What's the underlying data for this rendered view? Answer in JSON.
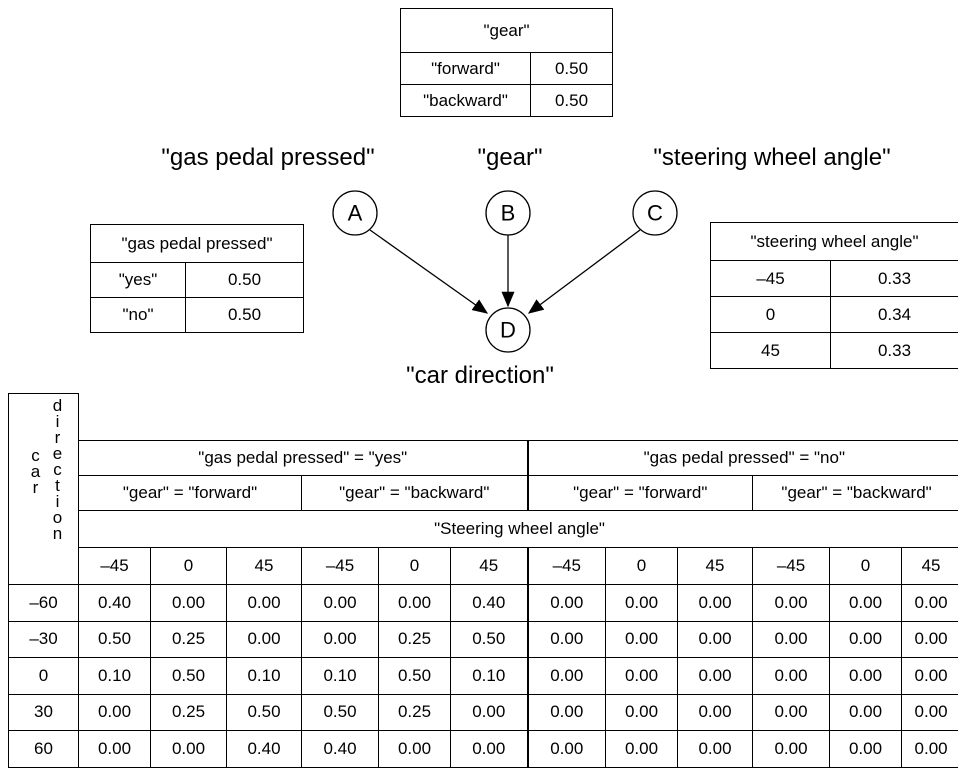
{
  "gear_table": {
    "title": "\"gear\"",
    "rows": [
      [
        "\"forward\"",
        "0.50"
      ],
      [
        "\"backward\"",
        "0.50"
      ]
    ]
  },
  "gas_table": {
    "title": "\"gas pedal pressed\"",
    "rows": [
      [
        "\"yes\"",
        "0.50"
      ],
      [
        "\"no\"",
        "0.50"
      ]
    ]
  },
  "steering_table": {
    "title": "\"steering wheel angle\"",
    "rows": [
      [
        "–45",
        "0.33"
      ],
      [
        "0",
        "0.34"
      ],
      [
        "45",
        "0.33"
      ]
    ]
  },
  "nodes": [
    {
      "letter": "A",
      "label": "\"gas pedal pressed\""
    },
    {
      "letter": "B",
      "label": "\"gear\""
    },
    {
      "letter": "C",
      "label": "\"steering wheel angle\""
    },
    {
      "letter": "D",
      "label": "\"car direction\""
    }
  ],
  "cpt": {
    "corner": [
      "car",
      "direction"
    ],
    "gas_headers": [
      "\"gas pedal pressed\" = \"yes\"",
      "\"gas pedal pressed\" = \"no\""
    ],
    "gear_headers": [
      "\"gear\" = \"forward\"",
      "\"gear\" = \"backward\"",
      "\"gear\" = \"forward\"",
      "\"gear\" = \"backward\""
    ],
    "angle_header": "\"Steering wheel angle\"",
    "angles": [
      "–45",
      "0",
      "45",
      "–45",
      "0",
      "45",
      "–45",
      "0",
      "45",
      "–45",
      "0",
      "45"
    ],
    "rows": [
      {
        "label": "–60",
        "values": [
          "0.40",
          "0.00",
          "0.00",
          "0.00",
          "0.00",
          "0.40",
          "0.00",
          "0.00",
          "0.00",
          "0.00",
          "0.00",
          "0.00"
        ]
      },
      {
        "label": "–30",
        "values": [
          "0.50",
          "0.25",
          "0.00",
          "0.00",
          "0.25",
          "0.50",
          "0.00",
          "0.00",
          "0.00",
          "0.00",
          "0.00",
          "0.00"
        ]
      },
      {
        "label": "0",
        "values": [
          "0.10",
          "0.50",
          "0.10",
          "0.10",
          "0.50",
          "0.10",
          "0.00",
          "0.00",
          "0.00",
          "0.00",
          "0.00",
          "0.00"
        ]
      },
      {
        "label": "30",
        "values": [
          "0.00",
          "0.25",
          "0.50",
          "0.50",
          "0.25",
          "0.00",
          "0.00",
          "0.00",
          "0.00",
          "0.00",
          "0.00",
          "0.00"
        ]
      },
      {
        "label": "60",
        "values": [
          "0.00",
          "0.00",
          "0.40",
          "0.40",
          "0.00",
          "0.00",
          "0.00",
          "0.00",
          "0.00",
          "0.00",
          "0.00",
          "0.00"
        ]
      }
    ]
  }
}
